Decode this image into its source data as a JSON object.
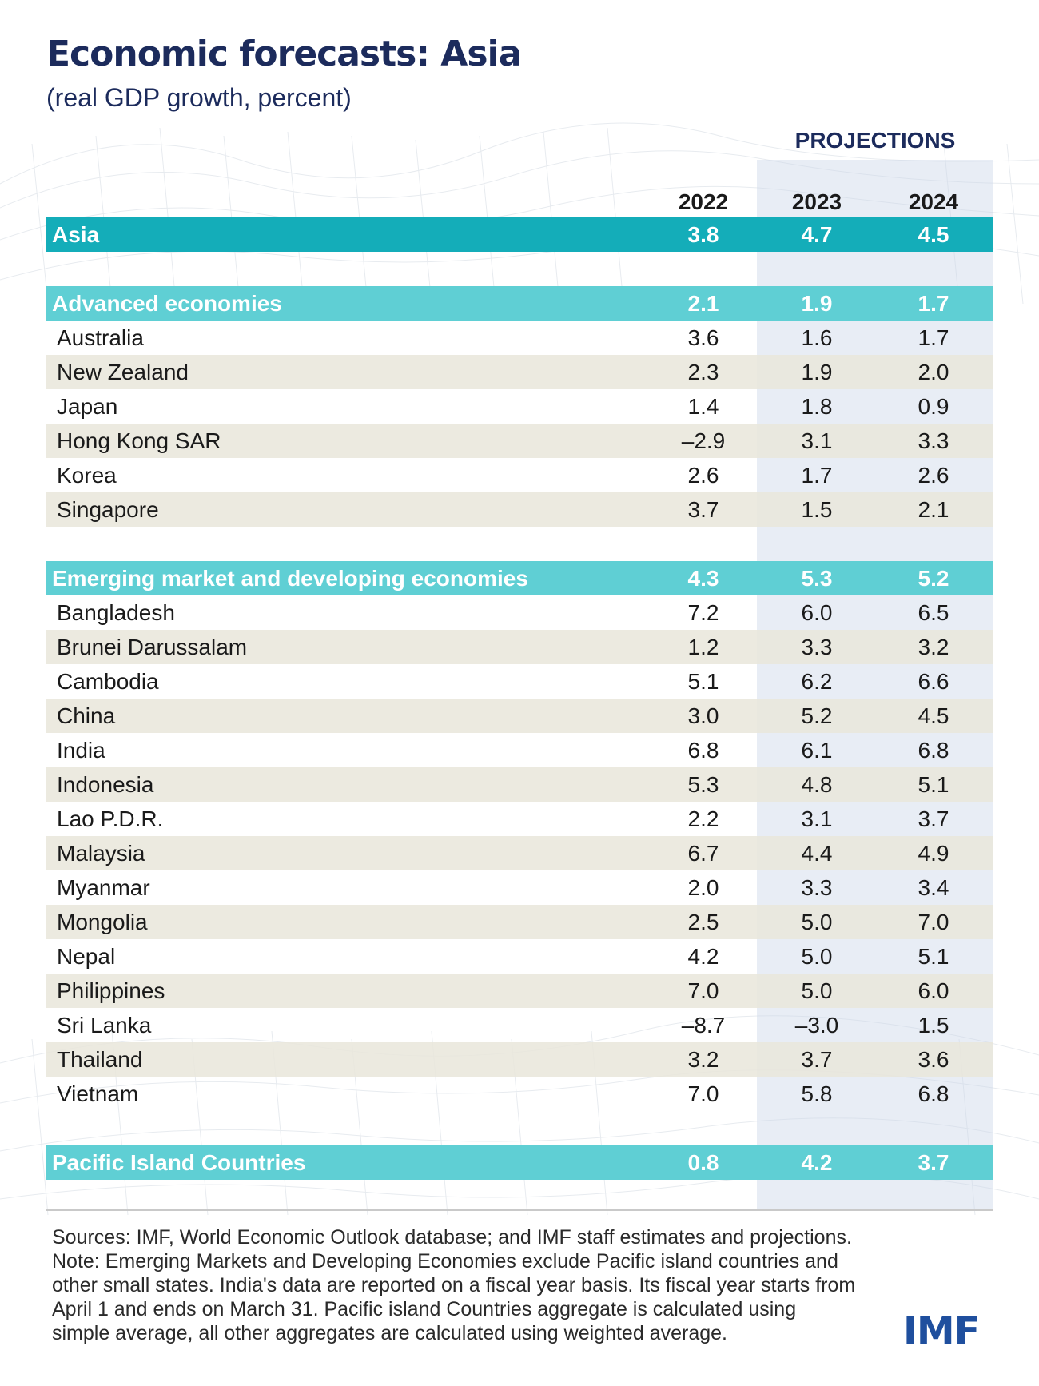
{
  "header": {
    "title": "Economic forecasts: Asia",
    "subtitle": "(real GDP growth, percent)",
    "projections_label": "PROJECTIONS"
  },
  "chart_data": {
    "type": "table",
    "title": "Economic forecasts: Asia",
    "subtitle": "(real GDP growth, percent)",
    "columns": [
      "2022",
      "2023",
      "2024"
    ],
    "projection_columns": [
      "2023",
      "2024"
    ],
    "rows": [
      {
        "name": "Asia",
        "kind": "total",
        "values": [
          "3.8",
          "4.7",
          "4.5"
        ]
      },
      {
        "name": "Advanced economies",
        "kind": "group",
        "values": [
          "2.1",
          "1.9",
          "1.7"
        ]
      },
      {
        "name": "Australia",
        "kind": "item",
        "values": [
          "3.6",
          "1.6",
          "1.7"
        ]
      },
      {
        "name": "New Zealand",
        "kind": "item",
        "values": [
          "2.3",
          "1.9",
          "2.0"
        ]
      },
      {
        "name": "Japan",
        "kind": "item",
        "values": [
          "1.4",
          "1.8",
          "0.9"
        ]
      },
      {
        "name": "Hong Kong SAR",
        "kind": "item",
        "values": [
          "–2.9",
          "3.1",
          "3.3"
        ]
      },
      {
        "name": "Korea",
        "kind": "item",
        "values": [
          "2.6",
          "1.7",
          "2.6"
        ]
      },
      {
        "name": "Singapore",
        "kind": "item",
        "values": [
          "3.7",
          "1.5",
          "2.1"
        ]
      },
      {
        "name": "Emerging market and developing economies",
        "kind": "group",
        "values": [
          "4.3",
          "5.3",
          "5.2"
        ]
      },
      {
        "name": "Bangladesh",
        "kind": "item",
        "values": [
          "7.2",
          "6.0",
          "6.5"
        ]
      },
      {
        "name": "Brunei Darussalam",
        "kind": "item",
        "values": [
          "1.2",
          "3.3",
          "3.2"
        ]
      },
      {
        "name": "Cambodia",
        "kind": "item",
        "values": [
          "5.1",
          "6.2",
          "6.6"
        ]
      },
      {
        "name": "China",
        "kind": "item",
        "values": [
          "3.0",
          "5.2",
          "4.5"
        ]
      },
      {
        "name": "India",
        "kind": "item",
        "values": [
          "6.8",
          "6.1",
          "6.8"
        ]
      },
      {
        "name": "Indonesia",
        "kind": "item",
        "values": [
          "5.3",
          "4.8",
          "5.1"
        ]
      },
      {
        "name": "Lao P.D.R.",
        "kind": "item",
        "values": [
          "2.2",
          "3.1",
          "3.7"
        ]
      },
      {
        "name": "Malaysia",
        "kind": "item",
        "values": [
          "6.7",
          "4.4",
          "4.9"
        ]
      },
      {
        "name": "Myanmar",
        "kind": "item",
        "values": [
          "2.0",
          "3.3",
          "3.4"
        ]
      },
      {
        "name": "Mongolia",
        "kind": "item",
        "values": [
          "2.5",
          "5.0",
          "7.0"
        ]
      },
      {
        "name": "Nepal",
        "kind": "item",
        "values": [
          "4.2",
          "5.0",
          "5.1"
        ]
      },
      {
        "name": "Philippines",
        "kind": "item",
        "values": [
          "7.0",
          "5.0",
          "6.0"
        ]
      },
      {
        "name": "Sri Lanka",
        "kind": "item",
        "values": [
          "–8.7",
          "–3.0",
          "1.5"
        ]
      },
      {
        "name": "Thailand",
        "kind": "item",
        "values": [
          "3.2",
          "3.7",
          "3.6"
        ]
      },
      {
        "name": "Vietnam",
        "kind": "item",
        "values": [
          "7.0",
          "5.8",
          "6.8"
        ]
      },
      {
        "name": "Pacific Island Countries",
        "kind": "group",
        "values": [
          "0.8",
          "4.2",
          "3.7"
        ]
      }
    ]
  },
  "notes": [
    "Sources: IMF, World Economic Outlook database; and IMF staff estimates and projections.",
    "Note: Emerging Markets and Developing Economies exclude Pacific island countries and",
    "other small states. India's data are reported on a fiscal year basis. Its fiscal year starts from",
    "April 1 and ends on March 31. Pacific island Countries aggregate is calculated using",
    "simple average, all other aggregates are calculated using weighted average."
  ],
  "logo": "IMF",
  "colors": {
    "title": "#1c2b5c",
    "total_row": "#14adb9",
    "group_row": "#5fcfd4",
    "stripe": "#e9e6db",
    "projection_band": "#cdd8e8",
    "logo": "#1f4f9e"
  }
}
